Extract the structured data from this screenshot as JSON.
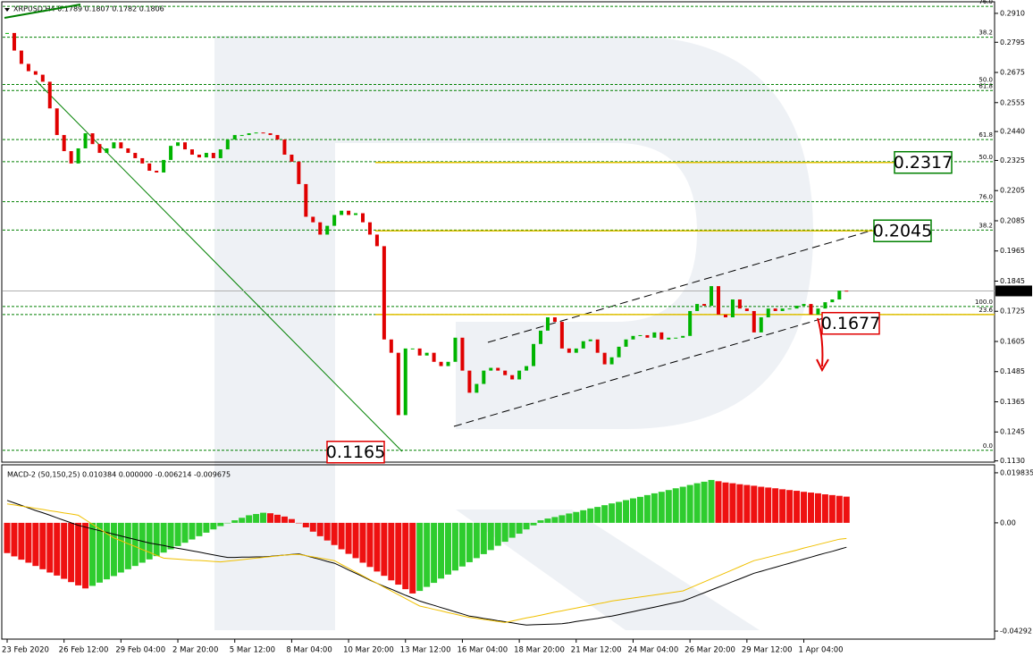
{
  "header": "XRPUSD,H4  0.1789 0.1807 0.1782 0.1806",
  "chart_data": [
    {
      "type": "candlestick",
      "categories": [
        "23 Feb 2020",
        null,
        null,
        null,
        null,
        null,
        null,
        null,
        "26 Feb 12:00",
        null,
        null,
        null,
        null,
        null,
        null,
        null,
        "29 Feb 04:00",
        null,
        null,
        null,
        null,
        null,
        null,
        null,
        "2 Mar 20:00",
        null,
        null,
        null,
        null,
        null,
        null,
        null,
        "5 Mar 12:00",
        null,
        null,
        null,
        null,
        null,
        null,
        null,
        "8 Mar 04:00",
        null,
        null,
        null,
        null,
        null,
        null,
        null,
        "10 Mar 20:00",
        null,
        null,
        null,
        null,
        null,
        null,
        null,
        "13 Mar 12:00",
        null,
        null,
        null,
        null,
        null,
        null,
        null,
        "16 Mar 04:00",
        null,
        null,
        null,
        null,
        null,
        null,
        null,
        "18 Mar 20:00",
        null,
        null,
        null,
        null,
        null,
        null,
        null,
        "21 Mar 12:00",
        null,
        null,
        null,
        null,
        null,
        null,
        null,
        "24 Mar 04:00",
        null,
        null,
        null,
        null,
        null,
        null,
        null,
        "26 Mar 20:00",
        null,
        null,
        null,
        null,
        null,
        null,
        null,
        "29 Mar 12:00",
        null,
        null,
        null,
        null,
        null,
        null,
        null,
        "1 Apr 04:00",
        null,
        null,
        null,
        null,
        null,
        null
      ],
      "closes": [
        0.2832,
        0.2762,
        0.2709,
        0.268,
        0.2666,
        0.2638,
        0.2532,
        0.2426,
        0.2362,
        0.2313,
        0.2373,
        0.2433,
        0.239,
        0.2355,
        0.2373,
        0.2397,
        0.2373,
        0.2355,
        0.2334,
        0.2313,
        0.2284,
        0.2277,
        0.2327,
        0.2383,
        0.2397,
        0.2369,
        0.2348,
        0.2337,
        0.2355,
        0.2334,
        0.2369,
        0.2408,
        0.2426,
        0.2426,
        0.2433,
        0.2436,
        0.2433,
        0.2426,
        0.2408,
        0.2348,
        0.232,
        0.2231,
        0.2101,
        0.2079,
        0.203,
        0.2065,
        0.2108,
        0.2125,
        0.2108,
        0.2115,
        0.2079,
        0.203,
        0.1984,
        0.1613,
        0.156,
        0.1312,
        0.1577,
        0.1577,
        0.1549,
        0.156,
        0.1524,
        0.1507,
        0.1524,
        0.162,
        0.1489,
        0.1401,
        0.1436,
        0.1489,
        0.15,
        0.1489,
        0.1471,
        0.1454,
        0.1489,
        0.1507,
        0.1595,
        0.1648,
        0.1701,
        0.1683,
        0.1577,
        0.156,
        0.1577,
        0.1606,
        0.1613,
        0.156,
        0.1514,
        0.1542,
        0.1584,
        0.1613,
        0.1627,
        0.163,
        0.162,
        0.1641,
        0.1613,
        0.162,
        0.162,
        0.1627,
        0.1726,
        0.1754,
        0.1747,
        0.1825,
        0.1712,
        0.1701,
        0.1772,
        0.1736,
        0.1726,
        0.1641,
        0.1701,
        0.1736,
        0.1726,
        0.1736,
        0.1736,
        0.1747,
        0.1754,
        0.1712,
        0.1736,
        0.1761,
        0.1772,
        0.1807,
        0.1806
      ],
      "up_color": "#00b400",
      "down_color": "#e00000",
      "ylim": [
        0.1125,
        0.2956
      ],
      "yticks": [
        {
          "value": 0.291,
          "label": "0.2910"
        },
        {
          "value": 0.2795,
          "label": "0.2795"
        },
        {
          "value": 0.2675,
          "label": "0.2675"
        },
        {
          "value": 0.2555,
          "label": "0.2555"
        },
        {
          "value": 0.244,
          "label": "0.2440"
        },
        {
          "value": 0.2325,
          "label": "0.2325"
        },
        {
          "value": 0.2205,
          "label": "0.2205"
        },
        {
          "value": 0.2085,
          "label": "0.2085"
        },
        {
          "value": 0.1965,
          "label": "0.1965"
        },
        {
          "value": 0.1845,
          "label": "0.1845"
        },
        {
          "value": 0.1725,
          "label": "0.1725"
        },
        {
          "value": 0.1605,
          "label": "0.1605"
        },
        {
          "value": 0.1485,
          "label": "0.1485"
        },
        {
          "value": 0.1365,
          "label": "0.1365"
        },
        {
          "value": 0.1245,
          "label": "0.1245"
        },
        {
          "value": 0.113,
          "label": "0.1130"
        }
      ],
      "last_price": 0.1806,
      "fib_levels": [
        {
          "label": "76.0",
          "price": 0.2938
        },
        {
          "label": "38.2",
          "price": 0.2815
        },
        {
          "label": "50.0",
          "price": 0.2627
        },
        {
          "label": "61.8",
          "price": 0.2603
        },
        {
          "label": "61.8",
          "price": 0.2408
        },
        {
          "label": "50.0",
          "price": 0.232
        },
        {
          "label": "76.0",
          "price": 0.2161
        },
        {
          "label": "38.2",
          "price": 0.2048
        },
        {
          "label": "100.0",
          "price": 0.1744
        },
        {
          "label": "23.6",
          "price": 0.1712
        },
        {
          "label": "0.0",
          "price": 0.1172
        }
      ],
      "annotations": [
        {
          "value": 0.1165,
          "color": "#e00000"
        },
        {
          "value": 0.2317,
          "color": "#008000"
        },
        {
          "value": 0.2045,
          "color": "#008000"
        },
        {
          "value": 0.1677,
          "color": "#e00000"
        }
      ]
    },
    {
      "type": "macd",
      "title": "MACD-2 (50,150,25) 0.010384 0.000000 -0.006214 -0.009675",
      "values": [
        -0.012,
        -0.0133,
        -0.0146,
        -0.0158,
        -0.0171,
        -0.0184,
        -0.0197,
        -0.0209,
        -0.0222,
        -0.0235,
        -0.0248,
        -0.026,
        -0.025,
        -0.0237,
        -0.0224,
        -0.0211,
        -0.0197,
        -0.0184,
        -0.0171,
        -0.0158,
        -0.0145,
        -0.0132,
        -0.0118,
        -0.0105,
        -0.0092,
        -0.0079,
        -0.0066,
        -0.0053,
        -0.0039,
        -0.0026,
        -0.0013,
        0.0,
        0.001,
        0.002,
        0.003,
        0.0035,
        0.004,
        0.0038,
        0.0032,
        0.0025,
        0.0015,
        0.0,
        -0.0018,
        -0.0035,
        -0.0053,
        -0.007,
        -0.0088,
        -0.0105,
        -0.0123,
        -0.014,
        -0.0158,
        -0.0175,
        -0.0193,
        -0.021,
        -0.0228,
        -0.0245,
        -0.0263,
        -0.028,
        -0.027,
        -0.0254,
        -0.0238,
        -0.0221,
        -0.0205,
        -0.0189,
        -0.0173,
        -0.0156,
        -0.014,
        -0.0124,
        -0.0108,
        -0.0091,
        -0.0075,
        -0.0059,
        -0.0043,
        -0.0026,
        -0.001,
        0.001,
        0.0017,
        0.0023,
        0.003,
        0.0037,
        0.0043,
        0.005,
        0.0057,
        0.0063,
        0.007,
        0.0077,
        0.0083,
        0.009,
        0.0097,
        0.0103,
        0.011,
        0.0117,
        0.0123,
        0.013,
        0.0137,
        0.0143,
        0.015,
        0.0157,
        0.0163,
        0.017,
        0.0165,
        0.016,
        0.0157,
        0.0153,
        0.015,
        0.0147,
        0.0143,
        0.014,
        0.0137,
        0.0133,
        0.013,
        0.0127,
        0.0123,
        0.012,
        0.0117,
        0.0113,
        0.011,
        0.0107,
        0.010384
      ],
      "up_color": "#2ecc2e",
      "down_color": "#ee1111",
      "lines": [
        {
          "color": "#000000",
          "values": [
            0.0089,
            0.0079,
            0.0069,
            0.0059,
            0.0049,
            0.004,
            0.003,
            0.002,
            0.001,
            0.0,
            -0.001,
            -0.0017,
            -0.0024,
            -0.0031,
            -0.0038,
            -0.0045,
            -0.0052,
            -0.0059,
            -0.0066,
            -0.0073,
            -0.008,
            -0.0085,
            -0.009,
            -0.0096,
            -0.0101,
            -0.0106,
            -0.0111,
            -0.0116,
            -0.0122,
            -0.0127,
            -0.0132,
            -0.0137,
            -0.0137,
            -0.0136,
            -0.0136,
            -0.0135,
            -0.0135,
            -0.0133,
            -0.013,
            -0.0128,
            -0.0125,
            -0.0123,
            -0.013,
            -0.0138,
            -0.0145,
            -0.0153,
            -0.016,
            -0.0173,
            -0.0187,
            -0.02,
            -0.0213,
            -0.0227,
            -0.024,
            -0.0252,
            -0.0263,
            -0.0275,
            -0.0287,
            -0.0298,
            -0.031,
            -0.0319,
            -0.0327,
            -0.0336,
            -0.0344,
            -0.0353,
            -0.0361,
            -0.037,
            -0.0374,
            -0.0379,
            -0.0383,
            -0.0388,
            -0.0392,
            -0.0396,
            -0.0401,
            -0.0405,
            -0.0404,
            -0.0403,
            -0.0402,
            -0.0401,
            -0.04,
            -0.0396,
            -0.0391,
            -0.0387,
            -0.0383,
            -0.0379,
            -0.0374,
            -0.037,
            -0.0364,
            -0.0358,
            -0.0352,
            -0.0346,
            -0.034,
            -0.0334,
            -0.0328,
            -0.0322,
            -0.0316,
            -0.031,
            -0.0299,
            -0.0288,
            -0.0277,
            -0.0266,
            -0.0255,
            -0.0244,
            -0.0233,
            -0.0222,
            -0.0211,
            -0.02,
            -0.0192,
            -0.0184,
            -0.0176,
            -0.0168,
            -0.016,
            -0.0152,
            -0.0144,
            -0.0136,
            -0.0128,
            -0.012,
            -0.0113,
            -0.0105,
            -0.009675
          ]
        },
        {
          "color": "#f0c000",
          "values": [
            0.0075,
            0.0071,
            0.0066,
            0.0062,
            0.0057,
            0.0053,
            0.0048,
            0.0044,
            0.0039,
            0.0035,
            0.003,
            0.0012,
            -0.0006,
            -0.0024,
            -0.0042,
            -0.006,
            -0.0071,
            -0.0083,
            -0.0094,
            -0.0106,
            -0.0117,
            -0.0129,
            -0.014,
            -0.0142,
            -0.0144,
            -0.0146,
            -0.0148,
            -0.0149,
            -0.0151,
            -0.0153,
            -0.0155,
            -0.0152,
            -0.0149,
            -0.0146,
            -0.0143,
            -0.014,
            -0.0137,
            -0.0134,
            -0.0131,
            -0.0128,
            -0.0126,
            -0.0125,
            -0.013,
            -0.0135,
            -0.014,
            -0.0145,
            -0.015,
            -0.0165,
            -0.018,
            -0.0195,
            -0.021,
            -0.0225,
            -0.024,
            -0.0255,
            -0.027,
            -0.0285,
            -0.03,
            -0.0315,
            -0.033,
            -0.0336,
            -0.0343,
            -0.0349,
            -0.0356,
            -0.0362,
            -0.0369,
            -0.0375,
            -0.0379,
            -0.0383,
            -0.0387,
            -0.0391,
            -0.0395,
            -0.0389,
            -0.0383,
            -0.0377,
            -0.0372,
            -0.0366,
            -0.036,
            -0.0354,
            -0.0349,
            -0.0343,
            -0.0338,
            -0.0332,
            -0.0327,
            -0.0321,
            -0.0316,
            -0.031,
            -0.0306,
            -0.0302,
            -0.0298,
            -0.0294,
            -0.029,
            -0.0286,
            -0.0282,
            -0.0278,
            -0.0274,
            -0.027,
            -0.0258,
            -0.0246,
            -0.0234,
            -0.0222,
            -0.021,
            -0.0198,
            -0.0186,
            -0.0174,
            -0.0162,
            -0.015,
            -0.0143,
            -0.0136,
            -0.0129,
            -0.0122,
            -0.0115,
            -0.0108,
            -0.01,
            -0.0093,
            -0.0086,
            -0.0079,
            -0.0072,
            -0.0065,
            -0.006214
          ]
        }
      ],
      "ylim": [
        -0.0461,
        0.023
      ],
      "yticks": [
        0.019835,
        {
          "value": 0,
          "label": "0.00"
        },
        -0.04292
      ]
    }
  ]
}
